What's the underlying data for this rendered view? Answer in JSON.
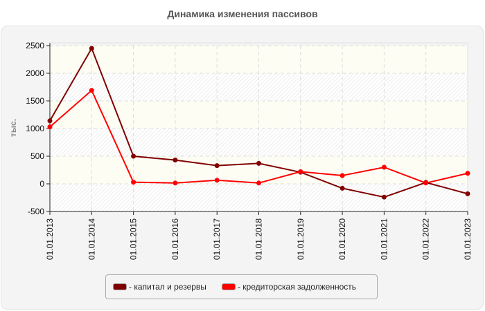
{
  "title": "Динамика изменения пассивов",
  "colors": {
    "series1": "#800000",
    "series2": "#ff0000",
    "axis": "#222222",
    "grid": "#dddddd"
  },
  "chart_data": {
    "type": "line",
    "title": "Динамика изменения пассивов",
    "xlabel": "",
    "ylabel": "тыс.",
    "ylim": [
      -500,
      2500
    ],
    "yticks": [
      -500,
      0,
      500,
      1000,
      1500,
      2000,
      2500
    ],
    "grid": true,
    "legend_position": "bottom",
    "categories": [
      "01.01.2013",
      "01.01.2014",
      "01.01.2015",
      "01.01.2016",
      "01.01.2017",
      "01.01.2018",
      "01.01.2019",
      "01.01.2020",
      "01.01.2021",
      "01.01.2022",
      "01.01.2023"
    ],
    "series": [
      {
        "name": "капитал и резервы",
        "color": "#800000",
        "values": [
          1140,
          2450,
          500,
          430,
          330,
          370,
          210,
          -80,
          -240,
          25,
          -180
        ]
      },
      {
        "name": "кредиторская задолженность",
        "color": "#ff0000",
        "values": [
          1030,
          1690,
          30,
          15,
          65,
          15,
          220,
          150,
          300,
          15,
          190
        ]
      }
    ]
  },
  "legend": [
    {
      "label": "- капитал и резервы",
      "color": "#800000"
    },
    {
      "label": "- кредиторская задолженность",
      "color": "#ff0000"
    }
  ]
}
